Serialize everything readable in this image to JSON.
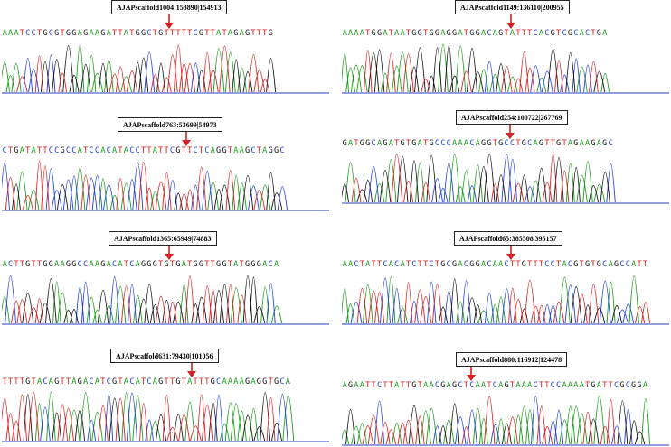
{
  "colors": {
    "A": "#1a9a1a",
    "C": "#1f3fd8",
    "G": "#111111",
    "T": "#d42020",
    "arrow": "#d42020",
    "baseline": "#6f7fd6"
  },
  "panels": [
    {
      "label": "AJAPscaffold1004:153890|154913",
      "sequence": "AAATCCTGCGTGGAGAAGATTATGGCTGTTTTTCGTTATAGAGTTTG"
    },
    {
      "label": "AJAPscaffold1149:136110|200955",
      "sequence": "AAAATGGATAATGGTGGAGGATGGACAGTATTTCACGTCGCACTGA"
    },
    {
      "label": "AJAPscaffold763:53699|54973",
      "sequence": "CTGATATTCCGCCATCCACATACCTTATTCGTTCTCAGGTAAGCTAGGC"
    },
    {
      "label": "AJAPscaffold254:100722|267769",
      "sequence": "GATGGCAGATGTGATGCCCAAACAGGTGCCTGCAGTTGTAGAAGAGC"
    },
    {
      "label": "AJAPscaffold1365:65949|74883",
      "sequence": "ACTTGTTGGAAGGCCAAGACATCAGGGTGTGATGGTTGGTATGGGACA"
    },
    {
      "label": "AJAPscaffold65:385508|395157",
      "sequence": "AACTATTCACATCTTCTGCGACGGACAACTTGTTTCCTACGTGTGCAGCCATT"
    },
    {
      "label": "AJAPscaffold631:79430|101056",
      "sequence": "TTTTGTACAGTTAGACATCGTACATCAGTTGTATTTGCAAAAGAGGTGCA"
    },
    {
      "label": "AJAPscaffold880:116912|124478",
      "sequence": "AGAATTCTTATTGTAACGAGCTCAATCAGTAAACTTCCAAAATGATTCGCGGA"
    }
  ]
}
